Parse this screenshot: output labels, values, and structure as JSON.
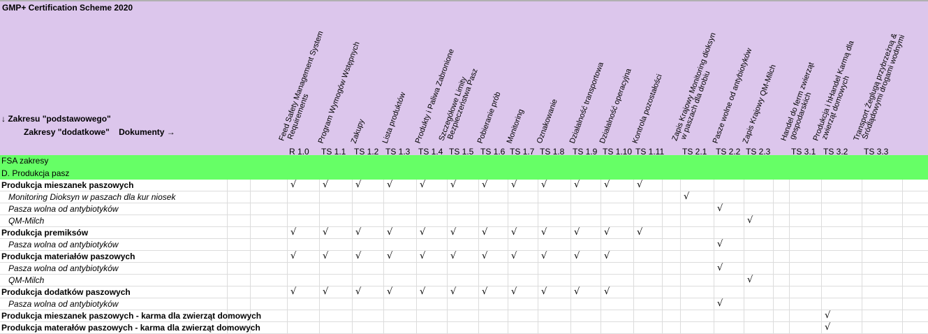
{
  "title": "GMP+ Certification Scheme 2020",
  "corner": {
    "basic_scopes": "↓ Zakresu \"podstawowego\"",
    "additional_scopes": "Zakresy \"dodatkowe\"",
    "documents": "Dokumenty →"
  },
  "columns": [
    {
      "code": "R 1.0",
      "header": "Feed Safety Management System\n  Requirements"
    },
    {
      "code": "TS 1.1",
      "header": "Program Wymogów Wstępnych"
    },
    {
      "code": "TS 1.2",
      "header": "Zakupy"
    },
    {
      "code": "TS 1.3",
      "header": "Lista produktów"
    },
    {
      "code": "TS 1.4",
      "header": "Produkty i Paliwa Zabronione"
    },
    {
      "code": "TS 1.5",
      "header": "Szczegółowe Limity\n  Bezpieczeństwa Pasz"
    },
    {
      "code": "TS 1.6",
      "header": "Pobieranie prób"
    },
    {
      "code": "TS 1.7",
      "header": "Monitoring"
    },
    {
      "code": "TS 1.8",
      "header": "Oznakowanie"
    },
    {
      "code": "TS 1.9",
      "header": "Działalność transportowa"
    },
    {
      "code": "TS 1.10",
      "header": "Działalność operacyjna"
    },
    {
      "code": "TS 1.11",
      "header": "Kontrola pozostałości"
    },
    {
      "code": "",
      "header": ""
    },
    {
      "code": "TS 2.1",
      "header": "Zapis Krajowy Monitoring dioksyn\n  w paszach dla drobiu"
    },
    {
      "code": "TS 2.2",
      "header": "Pasze wolne od antybiotyków"
    },
    {
      "code": "TS 2.3",
      "header": "Zapis Krajowy QM-Milch"
    },
    {
      "code": "",
      "header": ""
    },
    {
      "code": "TS 3.1",
      "header": "Handel do ferm zwierząt\n  gospodarskich"
    },
    {
      "code": "TS 3.2",
      "header": "Produkcja i hHandel Karmą dla\n  zwierząt domowych"
    },
    {
      "code": "TS 3.3",
      "header": "Transport Żeglugą przybrzeżną &\n  Śródlądowymi drogami wodnymi"
    },
    {
      "code": "",
      "header": ""
    }
  ],
  "sections": [
    "FSA zakresy",
    "D. Produkcja pasz"
  ],
  "check_symbol": "√",
  "rows": [
    {
      "label": "Produkcja mieszanek paszowych",
      "type": "main",
      "checks": [
        "R 1.0",
        "TS 1.1",
        "TS 1.2",
        "TS 1.3",
        "TS 1.4",
        "TS 1.5",
        "TS 1.6",
        "TS 1.7",
        "TS 1.8",
        "TS 1.9",
        "TS 1.10",
        "TS 1.11"
      ]
    },
    {
      "label": "Monitoring Dioksyn w paszach dla kur niosek",
      "type": "sub",
      "checks": [
        "TS 2.1"
      ]
    },
    {
      "label": "Pasza wolna od antybiotyków",
      "type": "sub",
      "checks": [
        "TS 2.2"
      ]
    },
    {
      "label": "QM-Milch",
      "type": "sub",
      "checks": [
        "TS 2.3"
      ]
    },
    {
      "label": "Produkcja premiksów",
      "type": "main",
      "checks": [
        "R 1.0",
        "TS 1.1",
        "TS 1.2",
        "TS 1.3",
        "TS 1.4",
        "TS 1.5",
        "TS 1.6",
        "TS 1.7",
        "TS 1.8",
        "TS 1.9",
        "TS 1.10",
        "TS 1.11"
      ]
    },
    {
      "label": "Pasza wolna od antybiotyków",
      "type": "sub",
      "checks": [
        "TS 2.2"
      ]
    },
    {
      "label": "Produkcja materiałów paszowych",
      "type": "main",
      "checks": [
        "R 1.0",
        "TS 1.1",
        "TS 1.2",
        "TS 1.3",
        "TS 1.4",
        "TS 1.5",
        "TS 1.6",
        "TS 1.7",
        "TS 1.8",
        "TS 1.9",
        "TS 1.10"
      ]
    },
    {
      "label": "Pasza wolna od antybiotyków",
      "type": "sub",
      "checks": [
        "TS 2.2"
      ]
    },
    {
      "label": "QM-Milch",
      "type": "sub",
      "checks": [
        "TS 2.3"
      ]
    },
    {
      "label": "Produkcja dodatków paszowych",
      "type": "main",
      "checks": [
        "R 1.0",
        "TS 1.1",
        "TS 1.2",
        "TS 1.3",
        "TS 1.4",
        "TS 1.5",
        "TS 1.6",
        "TS 1.7",
        "TS 1.8",
        "TS 1.9",
        "TS 1.10"
      ]
    },
    {
      "label": "Pasza wolna od antybiotyków",
      "type": "sub",
      "checks": [
        "TS 2.2"
      ]
    },
    {
      "label": "Produkcja mieszanek paszowych - karma dla zwierząt domowych",
      "type": "main",
      "checks": [
        "TS 3.2"
      ]
    },
    {
      "label": "Produkcja materałów paszowych - karma dla zwierząt domowych",
      "type": "main",
      "checks": [
        "TS 3.2"
      ]
    }
  ],
  "colors": {
    "header_bg": "#dcc6ec",
    "section_bg": "#66ff66",
    "grid": "#dcdcdc"
  }
}
